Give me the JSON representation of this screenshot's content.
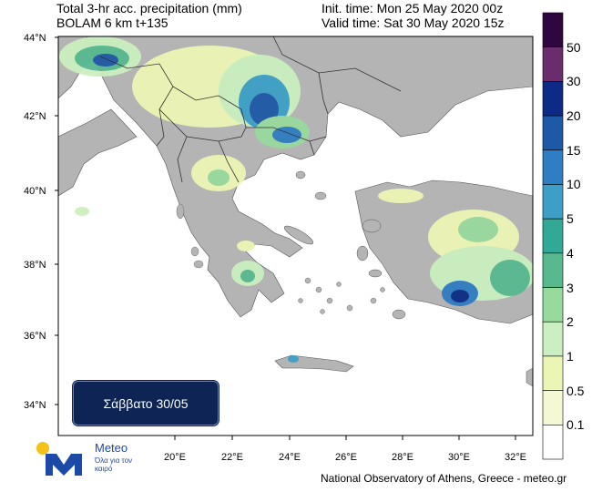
{
  "header": {
    "title_line1": "Total 3-hr acc. precipitation (mm)",
    "title_line2": "BOLAM 6 km t+135",
    "init_time": "Init. time: Mon 25 May 2020 00z",
    "valid_time": "Valid time: Sat 30 May 2020 15z"
  },
  "map": {
    "lat_labels": [
      "44°N",
      "42°N",
      "40°N",
      "38°N",
      "36°N",
      "34°N"
    ],
    "lon_labels": [
      "20°E",
      "22°E",
      "24°E",
      "26°E",
      "28°E",
      "30°E",
      "32°E"
    ],
    "land_color": "#b4b4b4",
    "sea_color": "#ffffff"
  },
  "colorbar": {
    "labels": [
      "50",
      "30",
      "20",
      "15",
      "10",
      "5",
      "4",
      "3",
      "2",
      "1",
      "0.5",
      "0.1"
    ],
    "colors": [
      "#30063f",
      "#6a2c6a",
      "#0c2a86",
      "#1d59a6",
      "#2f7dc2",
      "#3e9fc6",
      "#32a996",
      "#58b98f",
      "#98d99e",
      "#cbefc0",
      "#ecf6b4",
      "#f4f9d3",
      "#ffffff"
    ]
  },
  "date_box": {
    "label": "Σάββατο 30/05"
  },
  "logo": {
    "name": "Meteo",
    "subtitle": "Όλα για τον καιρό"
  },
  "footer": {
    "credit": "National Observatory of Athens, Greece - meteo.gr"
  }
}
